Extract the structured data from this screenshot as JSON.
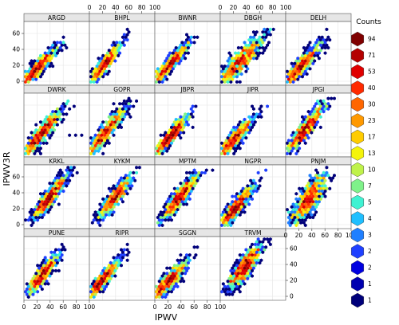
{
  "chart_data": {
    "type": "scatter",
    "xlabel": "IPWV",
    "ylabel": "IPWV3R",
    "xlim": [
      0,
      100
    ],
    "ylim": [
      -5,
      75
    ],
    "x_ticks": [
      0,
      20,
      40,
      60,
      80,
      100
    ],
    "y_ticks": [
      0,
      20,
      40,
      60
    ],
    "grid": true,
    "panels": [
      {
        "name": "ARGD",
        "row": 0,
        "col": 0,
        "center": [
          20,
          16
        ],
        "spread": 15,
        "slope": 0.82,
        "noise": 5,
        "points": [
          [
            5,
            3
          ],
          [
            10,
            8
          ],
          [
            15,
            13
          ],
          [
            20,
            16
          ],
          [
            25,
            20
          ],
          [
            30,
            25
          ],
          [
            35,
            30
          ],
          [
            40,
            33
          ],
          [
            45,
            38
          ],
          [
            50,
            42
          ],
          [
            55,
            47
          ],
          [
            60,
            50
          ]
        ]
      },
      {
        "name": "BHPL",
        "row": 0,
        "col": 1,
        "center": [
          22,
          20
        ],
        "spread": 13,
        "slope": 0.95,
        "noise": 5,
        "points": [
          [
            5,
            5
          ],
          [
            10,
            9
          ],
          [
            15,
            14
          ],
          [
            20,
            19
          ],
          [
            25,
            24
          ],
          [
            30,
            28
          ],
          [
            35,
            33
          ],
          [
            40,
            38
          ],
          [
            45,
            43
          ],
          [
            50,
            48
          ],
          [
            55,
            52
          ]
        ]
      },
      {
        "name": "BWNR",
        "row": 0,
        "col": 2,
        "center": [
          22,
          20
        ],
        "spread": 15,
        "slope": 0.9,
        "noise": 5,
        "points": [
          [
            5,
            4
          ],
          [
            10,
            9
          ],
          [
            15,
            14
          ],
          [
            20,
            18
          ],
          [
            25,
            23
          ],
          [
            30,
            27
          ],
          [
            35,
            32
          ],
          [
            40,
            36
          ],
          [
            45,
            41
          ],
          [
            50,
            45
          ],
          [
            55,
            50
          ],
          [
            60,
            55
          ]
        ]
      },
      {
        "name": "DBGH",
        "row": 0,
        "col": 3,
        "center": [
          30,
          24
        ],
        "spread": 18,
        "slope": 0.78,
        "noise": 8,
        "points": [
          [
            5,
            5
          ],
          [
            10,
            9
          ],
          [
            20,
            16
          ],
          [
            30,
            24
          ],
          [
            40,
            31
          ],
          [
            50,
            39
          ],
          [
            60,
            46
          ],
          [
            70,
            54
          ]
        ]
      },
      {
        "name": "DELH",
        "row": 0,
        "col": 4,
        "center": [
          22,
          18
        ],
        "spread": 15,
        "slope": 0.85,
        "noise": 6,
        "points": [
          [
            5,
            4
          ],
          [
            15,
            12
          ],
          [
            25,
            21
          ],
          [
            35,
            29
          ],
          [
            45,
            38
          ],
          [
            55,
            46
          ],
          [
            60,
            50
          ]
        ]
      },
      {
        "name": "DWRK",
        "row": 1,
        "col": 0,
        "center": [
          25,
          23
        ],
        "spread": 16,
        "slope": 0.9,
        "noise": 6,
        "points": [
          [
            5,
            5
          ],
          [
            15,
            14
          ],
          [
            25,
            23
          ],
          [
            35,
            32
          ],
          [
            45,
            41
          ],
          [
            55,
            50
          ],
          [
            60,
            58
          ],
          [
            70,
            22
          ],
          [
            80,
            22
          ],
          [
            90,
            21
          ]
        ]
      },
      {
        "name": "GOPR",
        "row": 1,
        "col": 1,
        "center": [
          25,
          26
        ],
        "spread": 15,
        "slope": 0.95,
        "noise": 6,
        "points": [
          [
            5,
            6
          ],
          [
            15,
            16
          ],
          [
            25,
            26
          ],
          [
            35,
            35
          ],
          [
            45,
            45
          ],
          [
            55,
            55
          ],
          [
            60,
            62
          ]
        ]
      },
      {
        "name": "JBPR",
        "row": 1,
        "col": 2,
        "center": [
          25,
          22
        ],
        "spread": 13,
        "slope": 0.9,
        "noise": 5,
        "points": [
          [
            5,
            4
          ],
          [
            15,
            13
          ],
          [
            25,
            22
          ],
          [
            35,
            31
          ],
          [
            45,
            41
          ],
          [
            55,
            50
          ]
        ]
      },
      {
        "name": "JIPR",
        "row": 1,
        "col": 3,
        "center": [
          22,
          18
        ],
        "spread": 14,
        "slope": 0.85,
        "noise": 6,
        "points": [
          [
            5,
            4
          ],
          [
            15,
            12
          ],
          [
            25,
            21
          ],
          [
            35,
            29
          ],
          [
            45,
            38
          ],
          [
            55,
            46
          ]
        ]
      },
      {
        "name": "JPGI",
        "row": 1,
        "col": 4,
        "center": [
          30,
          30
        ],
        "spread": 15,
        "slope": 0.95,
        "noise": 6,
        "points": [
          [
            10,
            10
          ],
          [
            20,
            20
          ],
          [
            30,
            30
          ],
          [
            40,
            39
          ],
          [
            50,
            48
          ],
          [
            60,
            58
          ]
        ]
      },
      {
        "name": "KRKL",
        "row": 2,
        "col": 0,
        "center": [
          40,
          35
        ],
        "spread": 13,
        "slope": 0.95,
        "noise": 6,
        "points": [
          [
            20,
            15
          ],
          [
            30,
            25
          ],
          [
            40,
            35
          ],
          [
            50,
            45
          ],
          [
            60,
            55
          ]
        ]
      },
      {
        "name": "KYKM",
        "row": 2,
        "col": 1,
        "center": [
          40,
          35
        ],
        "spread": 13,
        "slope": 0.95,
        "noise": 6,
        "points": [
          [
            20,
            15
          ],
          [
            30,
            25
          ],
          [
            40,
            35
          ],
          [
            50,
            45
          ],
          [
            60,
            55
          ]
        ]
      },
      {
        "name": "MPTM",
        "row": 2,
        "col": 2,
        "center": [
          38,
          35
        ],
        "spread": 14,
        "slope": 0.95,
        "noise": 6,
        "points": [
          [
            15,
            12
          ],
          [
            25,
            22
          ],
          [
            35,
            31
          ],
          [
            45,
            41
          ],
          [
            55,
            50
          ],
          [
            65,
            60
          ]
        ]
      },
      {
        "name": "NGPR",
        "row": 2,
        "col": 3,
        "center": [
          22,
          20
        ],
        "spread": 15,
        "slope": 0.9,
        "noise": 6,
        "points": [
          [
            5,
            5
          ],
          [
            15,
            14
          ],
          [
            25,
            23
          ],
          [
            35,
            32
          ],
          [
            45,
            41
          ],
          [
            55,
            50
          ],
          [
            60,
            55
          ]
        ]
      },
      {
        "name": "PNJM",
        "row": 2,
        "col": 4,
        "center": [
          35,
          32
        ],
        "spread": 15,
        "slope": 0.9,
        "noise": 10,
        "points": [
          [
            10,
            10
          ],
          [
            20,
            20
          ],
          [
            30,
            28
          ],
          [
            40,
            37
          ],
          [
            50,
            46
          ],
          [
            60,
            55
          ]
        ]
      },
      {
        "name": "PUNE",
        "row": 3,
        "col": 0,
        "center": [
          28,
          27
        ],
        "spread": 12,
        "slope": 0.95,
        "noise": 6,
        "points": [
          [
            10,
            10
          ],
          [
            20,
            19
          ],
          [
            30,
            28
          ],
          [
            40,
            38
          ],
          [
            50,
            47
          ]
        ]
      },
      {
        "name": "RIPR",
        "row": 3,
        "col": 1,
        "center": [
          20,
          20
        ],
        "spread": 13,
        "slope": 0.95,
        "noise": 5,
        "points": [
          [
            5,
            5
          ],
          [
            15,
            15
          ],
          [
            25,
            24
          ],
          [
            35,
            33
          ],
          [
            45,
            43
          ]
        ]
      },
      {
        "name": "SGGN",
        "row": 3,
        "col": 2,
        "center": [
          20,
          18
        ],
        "spread": 14,
        "slope": 0.85,
        "noise": 6,
        "points": [
          [
            5,
            4
          ],
          [
            15,
            12
          ],
          [
            25,
            21
          ],
          [
            35,
            29
          ],
          [
            45,
            38
          ],
          [
            55,
            46
          ],
          [
            60,
            50
          ]
        ]
      },
      {
        "name": "TRVM",
        "row": 3,
        "col": 3,
        "center": [
          38,
          38
        ],
        "spread": 13,
        "slope": 0.95,
        "noise": 8,
        "points": [
          [
            20,
            18
          ],
          [
            30,
            28
          ],
          [
            40,
            38
          ],
          [
            50,
            48
          ],
          [
            60,
            58
          ]
        ]
      }
    ],
    "legend": {
      "title": "Counts",
      "position": "right",
      "entries": [
        {
          "label": "94",
          "color": "#7f0000"
        },
        {
          "label": "71",
          "color": "#b40000"
        },
        {
          "label": "53",
          "color": "#e00000"
        },
        {
          "label": "40",
          "color": "#ff2a00"
        },
        {
          "label": "30",
          "color": "#ff6600"
        },
        {
          "label": "23",
          "color": "#ff9900"
        },
        {
          "label": "17",
          "color": "#ffcc00"
        },
        {
          "label": "13",
          "color": "#f4f40a"
        },
        {
          "label": "10",
          "color": "#bff24a"
        },
        {
          "label": "7",
          "color": "#7ff28a"
        },
        {
          "label": "5",
          "color": "#3ff2d2"
        },
        {
          "label": "4",
          "color": "#1fbfff"
        },
        {
          "label": "3",
          "color": "#1f7fff"
        },
        {
          "label": "2",
          "color": "#1f40ff"
        },
        {
          "label": "2",
          "color": "#0000e0"
        },
        {
          "label": "1",
          "color": "#0000b0"
        },
        {
          "label": "1",
          "color": "#00007a"
        }
      ]
    }
  }
}
